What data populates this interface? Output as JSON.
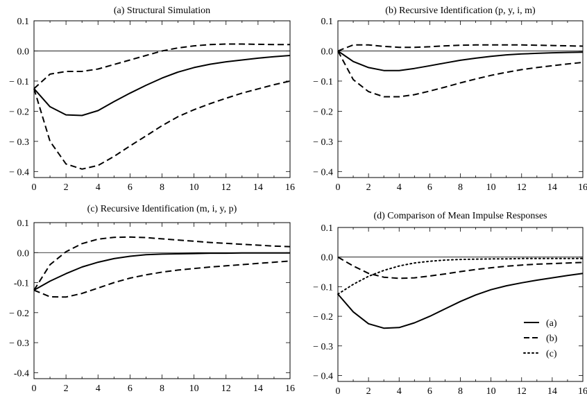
{
  "chart_data": [
    {
      "type": "line",
      "title": "(a) Structural Simulation",
      "xlim": [
        0,
        16
      ],
      "ylim": [
        -0.42,
        0.1
      ],
      "xticks": [
        0,
        2,
        4,
        6,
        8,
        10,
        12,
        14,
        16
      ],
      "yticks": [
        0.1,
        0.0,
        -0.1,
        -0.2,
        -0.3,
        -0.4
      ],
      "xtick_labels": [
        "0",
        "2",
        "4",
        "6",
        "8",
        "10",
        "12",
        "14",
        "16"
      ],
      "ytick_labels": [
        "0.1",
        "0.0",
        "− 0.1",
        "− 0.2",
        "− 0.3",
        "− 0.4"
      ],
      "zero_line": true,
      "series": [
        {
          "style": "solid",
          "x": [
            0,
            1,
            2,
            3,
            4,
            5,
            6,
            7,
            8,
            9,
            10,
            11,
            12,
            13,
            14,
            15,
            16
          ],
          "y": [
            -0.125,
            -0.185,
            -0.212,
            -0.214,
            -0.198,
            -0.168,
            -0.14,
            -0.114,
            -0.09,
            -0.07,
            -0.055,
            -0.044,
            -0.036,
            -0.03,
            -0.024,
            -0.019,
            -0.015
          ]
        },
        {
          "style": "dashed",
          "x": [
            0,
            1,
            2,
            3,
            4,
            5,
            6,
            7,
            8,
            9,
            10,
            11,
            12,
            13,
            14,
            15,
            16
          ],
          "y": [
            -0.125,
            -0.077,
            -0.068,
            -0.068,
            -0.06,
            -0.045,
            -0.03,
            -0.015,
            0.0,
            0.01,
            0.017,
            0.021,
            0.023,
            0.023,
            0.022,
            0.021,
            0.021
          ]
        },
        {
          "style": "dashed",
          "x": [
            0,
            1,
            2,
            3,
            4,
            5,
            6,
            7,
            8,
            9,
            10,
            11,
            12,
            13,
            14,
            15,
            16
          ],
          "y": [
            -0.125,
            -0.3,
            -0.375,
            -0.392,
            -0.38,
            -0.35,
            -0.315,
            -0.282,
            -0.248,
            -0.218,
            -0.195,
            -0.175,
            -0.157,
            -0.14,
            -0.126,
            -0.112,
            -0.1
          ]
        }
      ]
    },
    {
      "type": "line",
      "title": "(b) Recursive Identification (p, y, i, m)",
      "xlim": [
        0,
        16
      ],
      "ylim": [
        -0.42,
        0.1
      ],
      "xticks": [
        0,
        2,
        4,
        6,
        8,
        10,
        12,
        14,
        16
      ],
      "yticks": [
        0.1,
        0.0,
        -0.1,
        -0.2,
        -0.3,
        -0.4
      ],
      "xtick_labels": [
        "0",
        "2",
        "4",
        "6",
        "8",
        "10",
        "12",
        "14",
        "16"
      ],
      "ytick_labels": [
        "0.1",
        "0.0",
        "− 0.1",
        "− 0.2",
        "− 0.3",
        "− 0.4"
      ],
      "zero_line": true,
      "series": [
        {
          "style": "solid",
          "x": [
            0,
            1,
            2,
            3,
            4,
            5,
            6,
            7,
            8,
            9,
            10,
            11,
            12,
            13,
            14,
            15,
            16
          ],
          "y": [
            0.0,
            -0.035,
            -0.055,
            -0.065,
            -0.065,
            -0.058,
            -0.049,
            -0.04,
            -0.031,
            -0.024,
            -0.018,
            -0.013,
            -0.01,
            -0.008,
            -0.006,
            -0.005,
            -0.004
          ]
        },
        {
          "style": "dashed",
          "x": [
            0,
            1,
            2,
            3,
            4,
            5,
            6,
            7,
            8,
            9,
            10,
            11,
            12,
            13,
            14,
            15,
            16
          ],
          "y": [
            0.0,
            0.02,
            0.02,
            0.015,
            0.012,
            0.012,
            0.014,
            0.017,
            0.019,
            0.02,
            0.02,
            0.02,
            0.02,
            0.019,
            0.018,
            0.017,
            0.016
          ]
        },
        {
          "style": "dashed",
          "x": [
            0,
            1,
            2,
            3,
            4,
            5,
            6,
            7,
            8,
            9,
            10,
            11,
            12,
            13,
            14,
            15,
            16
          ],
          "y": [
            0.0,
            -0.095,
            -0.135,
            -0.152,
            -0.152,
            -0.145,
            -0.133,
            -0.12,
            -0.106,
            -0.093,
            -0.081,
            -0.071,
            -0.062,
            -0.055,
            -0.049,
            -0.043,
            -0.038
          ]
        }
      ]
    },
    {
      "type": "line",
      "title": "(c) Recursive Identification (m, i, y, p)",
      "xlim": [
        0,
        16
      ],
      "ylim": [
        -0.42,
        0.1
      ],
      "xticks": [
        0,
        2,
        4,
        6,
        8,
        10,
        12,
        14,
        16
      ],
      "yticks": [
        0.1,
        0.0,
        -0.1,
        -0.2,
        -0.3,
        -0.4
      ],
      "xtick_labels": [
        "0",
        "2",
        "4",
        "6",
        "8",
        "10",
        "12",
        "14",
        "16"
      ],
      "ytick_labels": [
        "0.1",
        "0.0",
        "-0.1",
        "− 0.2",
        "− 0.3",
        "-0.4"
      ],
      "zero_line": true,
      "series": [
        {
          "style": "solid",
          "x": [
            0,
            1,
            2,
            3,
            4,
            5,
            6,
            7,
            8,
            9,
            10,
            11,
            12,
            13,
            14,
            15,
            16
          ],
          "y": [
            -0.125,
            -0.095,
            -0.07,
            -0.048,
            -0.032,
            -0.02,
            -0.012,
            -0.007,
            -0.005,
            -0.004,
            -0.003,
            -0.002,
            -0.002,
            -0.001,
            -0.001,
            -0.001,
            -0.001
          ]
        },
        {
          "style": "dashed",
          "x": [
            0,
            1,
            2,
            3,
            4,
            5,
            6,
            7,
            8,
            9,
            10,
            11,
            12,
            13,
            14,
            15,
            16
          ],
          "y": [
            -0.125,
            -0.04,
            0.003,
            0.03,
            0.045,
            0.051,
            0.052,
            0.05,
            0.046,
            0.042,
            0.038,
            0.034,
            0.031,
            0.028,
            0.025,
            0.022,
            0.02
          ]
        },
        {
          "style": "dashed",
          "x": [
            0,
            1,
            2,
            3,
            4,
            5,
            6,
            7,
            8,
            9,
            10,
            11,
            12,
            13,
            14,
            15,
            16
          ],
          "y": [
            -0.125,
            -0.147,
            -0.148,
            -0.136,
            -0.118,
            -0.1,
            -0.085,
            -0.074,
            -0.065,
            -0.058,
            -0.053,
            -0.048,
            -0.044,
            -0.04,
            -0.036,
            -0.032,
            -0.028
          ]
        }
      ]
    },
    {
      "type": "line",
      "title": "(d) Comparison of Mean Impulse Responses",
      "xlim": [
        0,
        16
      ],
      "ylim": [
        -0.42,
        0.1
      ],
      "xticks": [
        0,
        2,
        4,
        6,
        8,
        10,
        12,
        14,
        16
      ],
      "yticks": [
        0.1,
        0.0,
        -0.1,
        -0.2,
        -0.3,
        -0.4
      ],
      "xtick_labels": [
        "0",
        "2",
        "4",
        "6",
        "8",
        "10",
        "12",
        "14",
        "16"
      ],
      "ytick_labels": [
        "0.1",
        "0.0",
        "− 0.1",
        "− 0.2",
        "− 0.3",
        "− 0.4"
      ],
      "zero_line": true,
      "legend": "bottom-right",
      "series": [
        {
          "name": "(a)",
          "style": "solid",
          "x": [
            0,
            1,
            2,
            3,
            4,
            5,
            6,
            7,
            8,
            9,
            10,
            11,
            12,
            13,
            14,
            15,
            16
          ],
          "y": [
            -0.125,
            -0.185,
            -0.225,
            -0.24,
            -0.238,
            -0.222,
            -0.2,
            -0.175,
            -0.15,
            -0.128,
            -0.11,
            -0.097,
            -0.087,
            -0.078,
            -0.07,
            -0.062,
            -0.055
          ]
        },
        {
          "name": "(b)",
          "style": "dashed",
          "x": [
            0,
            1,
            2,
            3,
            4,
            5,
            6,
            7,
            8,
            9,
            10,
            11,
            12,
            13,
            14,
            15,
            16
          ],
          "y": [
            0.0,
            -0.03,
            -0.055,
            -0.068,
            -0.072,
            -0.07,
            -0.064,
            -0.057,
            -0.049,
            -0.042,
            -0.036,
            -0.031,
            -0.027,
            -0.024,
            -0.022,
            -0.02,
            -0.018
          ]
        },
        {
          "name": "(c)",
          "style": "dotted",
          "x": [
            0,
            1,
            2,
            3,
            4,
            5,
            6,
            7,
            8,
            9,
            10,
            11,
            12,
            13,
            14,
            15,
            16
          ],
          "y": [
            -0.125,
            -0.092,
            -0.065,
            -0.045,
            -0.03,
            -0.02,
            -0.014,
            -0.01,
            -0.008,
            -0.007,
            -0.006,
            -0.006,
            -0.005,
            -0.005,
            -0.005,
            -0.005,
            -0.005
          ]
        }
      ]
    }
  ]
}
